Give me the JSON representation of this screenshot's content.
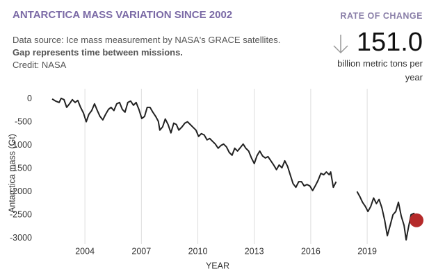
{
  "chart_data": {
    "type": "line",
    "title": "ANTARCTICA MASS VARIATION SINCE 2002",
    "notes": [
      "Data source: Ice mass measurement by NASA's GRACE satellites.",
      "Gap represents time between missions.",
      "Credit: NASA"
    ],
    "rate_of_change": {
      "label": "RATE OF CHANGE",
      "value": "151.0",
      "unit": "billion metric tons per year"
    },
    "xlabel": "YEAR",
    "ylabel": "Antarctica mass (Gt)",
    "color": "#222222",
    "marker_color": "#b52a2a",
    "grid": true,
    "xlim": [
      2002.0,
      2022.1
    ],
    "ylim": [
      -3120,
      220
    ],
    "xticks": [
      2004,
      2007,
      2010,
      2013,
      2016,
      2019
    ],
    "yticks": [
      -3000,
      -2500,
      -2000,
      -1500,
      -1000,
      -500,
      0
    ],
    "x": [
      2002.26,
      2002.44,
      2002.63,
      2002.74,
      2002.89,
      2003.03,
      2003.18,
      2003.33,
      2003.48,
      2003.62,
      2003.77,
      2003.92,
      2004.07,
      2004.21,
      2004.36,
      2004.51,
      2004.66,
      2004.8,
      2004.95,
      2005.1,
      2005.25,
      2005.39,
      2005.54,
      2005.69,
      2005.84,
      2005.99,
      2006.13,
      2006.28,
      2006.43,
      2006.58,
      2006.72,
      2006.87,
      2007.02,
      2007.17,
      2007.31,
      2007.46,
      2007.61,
      2007.76,
      2007.9,
      2007.98,
      2008.13,
      2008.27,
      2008.42,
      2008.57,
      2008.72,
      2008.86,
      2008.99,
      2009.16,
      2009.31,
      2009.45,
      2009.6,
      2009.75,
      2009.9,
      2010.04,
      2010.19,
      2010.34,
      2010.49,
      2010.63,
      2010.78,
      2010.93,
      2011.08,
      2011.23,
      2011.37,
      2011.52,
      2011.67,
      2011.82,
      2011.96,
      2012.11,
      2012.26,
      2012.41,
      2012.55,
      2012.7,
      2012.85,
      2013.0,
      2013.14,
      2013.29,
      2013.44,
      2013.59,
      2013.73,
      2013.88,
      2014.03,
      2014.18,
      2014.32,
      2014.47,
      2014.62,
      2014.77,
      2014.91,
      2015.06,
      2015.21,
      2015.36,
      2015.51,
      2015.65,
      2015.8,
      2015.95,
      2016.1,
      2016.24,
      2016.39,
      2016.54,
      2016.69,
      2016.83,
      2016.98,
      2017.06,
      2017.2,
      2017.35,
      2017.9,
      2018.46,
      2018.61,
      2018.75,
      2018.9,
      2019.04,
      2019.19,
      2019.34,
      2019.49,
      2019.63,
      2019.78,
      2019.93,
      2020.07,
      2020.22,
      2020.37,
      2020.52,
      2020.66,
      2020.81,
      2020.96,
      2021.07,
      2021.18,
      2021.33,
      2021.48,
      2021.62
    ],
    "values": [
      0,
      -45,
      -75,
      15,
      -15,
      -180,
      -105,
      -15,
      -75,
      -30,
      -180,
      -300,
      -490,
      -330,
      -250,
      -105,
      -250,
      -375,
      -450,
      -330,
      -225,
      -180,
      -250,
      -105,
      -75,
      -225,
      -285,
      -75,
      -45,
      -135,
      -75,
      -225,
      -420,
      -375,
      -180,
      -180,
      -285,
      -375,
      -480,
      -670,
      -600,
      -430,
      -550,
      -730,
      -520,
      -550,
      -670,
      -600,
      -520,
      -490,
      -550,
      -610,
      -670,
      -805,
      -745,
      -775,
      -880,
      -850,
      -910,
      -970,
      -1060,
      -1000,
      -970,
      -1030,
      -1150,
      -1210,
      -1060,
      -1120,
      -1045,
      -970,
      -1060,
      -1120,
      -1270,
      -1390,
      -1225,
      -1120,
      -1225,
      -1270,
      -1240,
      -1330,
      -1420,
      -1520,
      -1420,
      -1480,
      -1330,
      -1450,
      -1630,
      -1820,
      -1900,
      -1780,
      -1780,
      -1870,
      -1840,
      -1870,
      -1970,
      -1870,
      -1750,
      -1600,
      -1630,
      -1570,
      -1630,
      -1570,
      -1900,
      -1780,
      null,
      -1990,
      -2100,
      -2220,
      -2310,
      -2420,
      -2310,
      -2130,
      -2250,
      -2160,
      -2340,
      -2610,
      -2940,
      -2720,
      -2490,
      -2420,
      -2220,
      -2520,
      -2720,
      -3030,
      -2790,
      -2490,
      -2460,
      -2610
    ]
  }
}
